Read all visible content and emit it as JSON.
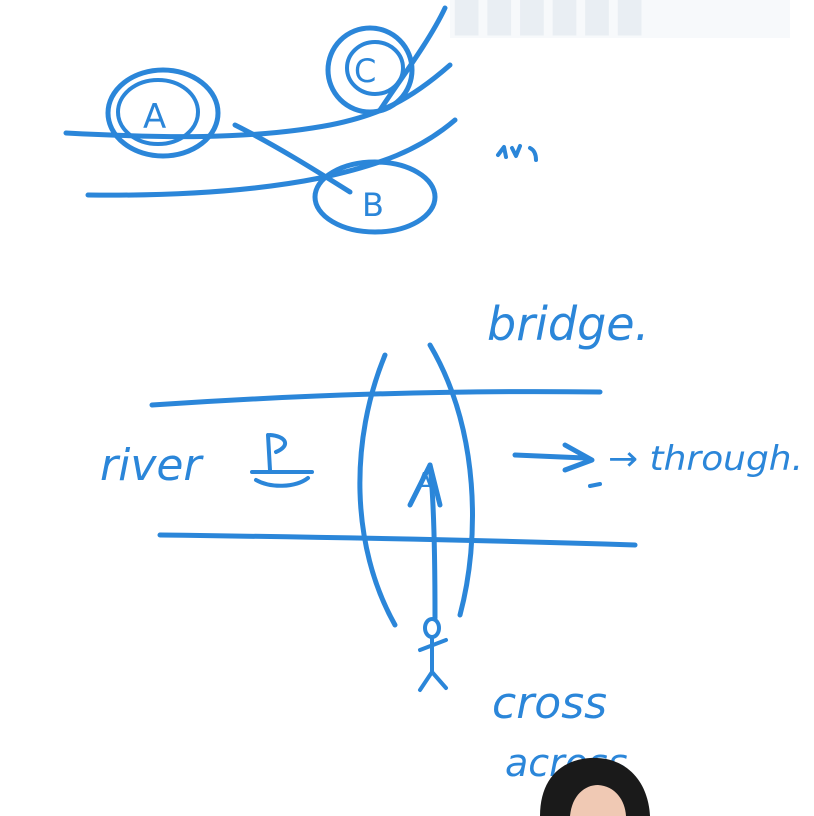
{
  "labels": {
    "node_a": "A",
    "node_b": "B",
    "node_c": "C",
    "bridge": "bridge.",
    "river": "river",
    "through": "→ through.",
    "cross": "cross",
    "across": "across",
    "arrow_label": "A"
  },
  "colors": {
    "ink": "#2b86d9",
    "background": "#ffffff",
    "watermark": "#e9eef3",
    "presenter_hair": "#1a1a1a",
    "presenter_skin": "#f0c9b4"
  }
}
